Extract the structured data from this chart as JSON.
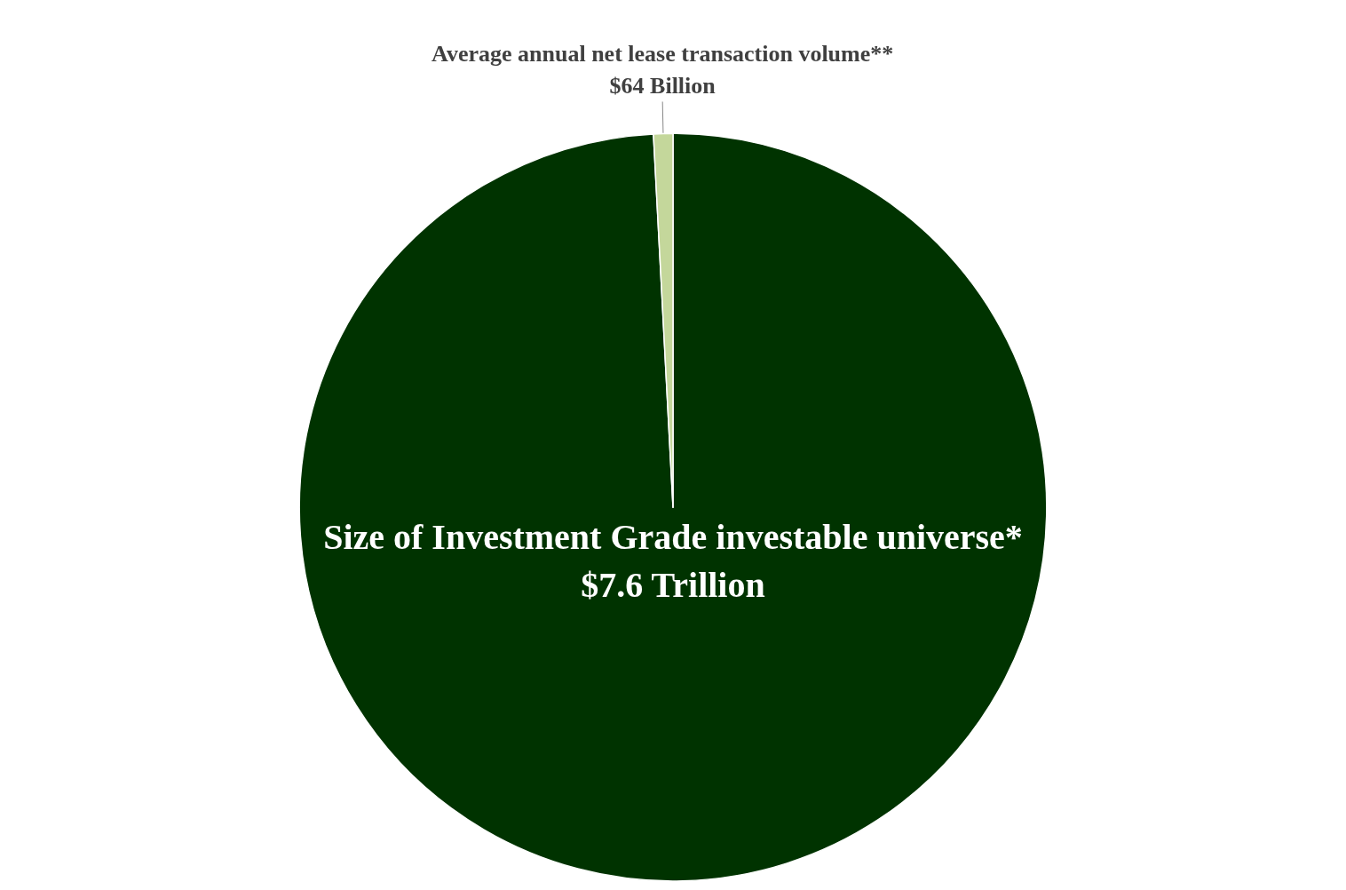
{
  "chart_data": {
    "type": "pie",
    "categories": [
      "Size of Investment Grade investable universe*\n$7.6 Trillion",
      "Average annual net lease transaction volume**\n$64 Billion"
    ],
    "values": [
      7600,
      64
    ],
    "colors": [
      "#003300",
      "#c4d79b"
    ]
  }
}
